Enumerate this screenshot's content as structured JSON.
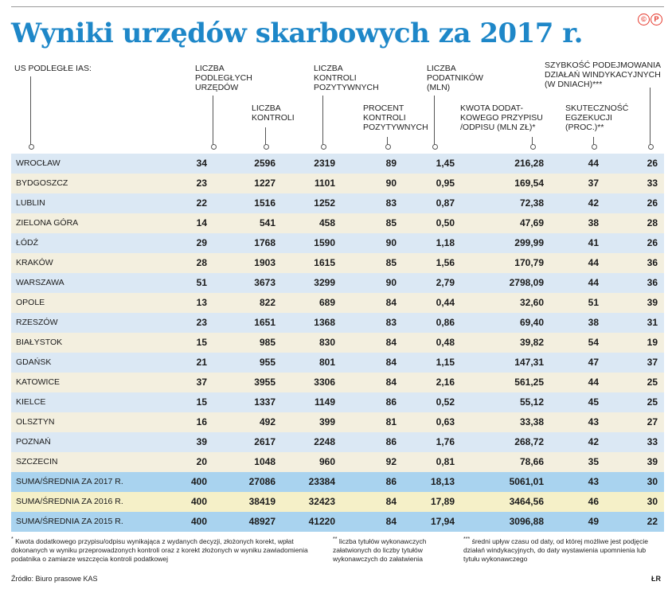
{
  "title": "Wyniki urzędów skarbowych za 2017 r.",
  "logo": "©P",
  "headers": {
    "us": "US PODLEGŁE IAS:",
    "liczba_urzedow": "LICZBA\nPODLEGŁYCH\nURZĘDÓW",
    "liczba_kontroli": "LICZBA\nKONTROLI",
    "kontrole_pozytywne": "LICZBA\nKONTROLI\nPOZYTYWNYCH",
    "procent_pozytywnych": "PROCENT\nKONTROLI\nPOZYTYWNYCH",
    "podatnicy": "LICZBA\nPODATNIKÓW\n(MLN)",
    "kwota": "KWOTA DODAT-\nKOWEGO PRZYPISU\n/ODPISU (MLN ZŁ)*",
    "skutecznosc": "SKUTECZNOŚĆ\nEGZEKUCJI\n(PROC.)**",
    "szybkosc": "SZYBKOŚĆ PODEJMOWANIA\nDZIAŁAŃ WINDYKACYJNYCH\n(W DNIACH)***"
  },
  "rows": [
    {
      "name": "WROCŁAW",
      "vals": [
        "34",
        "2596",
        "2319",
        "89",
        "1,45",
        "216,28",
        "44",
        "26"
      ]
    },
    {
      "name": "BYDGOSZCZ",
      "vals": [
        "23",
        "1227",
        "1101",
        "90",
        "0,95",
        "169,54",
        "37",
        "33"
      ]
    },
    {
      "name": "LUBLIN",
      "vals": [
        "22",
        "1516",
        "1252",
        "83",
        "0,87",
        "72,38",
        "42",
        "26"
      ]
    },
    {
      "name": "ZIELONA GÓRA",
      "vals": [
        "14",
        "541",
        "458",
        "85",
        "0,50",
        "47,69",
        "38",
        "28"
      ]
    },
    {
      "name": "ŁÓDŹ",
      "vals": [
        "29",
        "1768",
        "1590",
        "90",
        "1,18",
        "299,99",
        "41",
        "26"
      ]
    },
    {
      "name": "KRAKÓW",
      "vals": [
        "28",
        "1903",
        "1615",
        "85",
        "1,56",
        "170,79",
        "44",
        "36"
      ]
    },
    {
      "name": "WARSZAWA",
      "vals": [
        "51",
        "3673",
        "3299",
        "90",
        "2,79",
        "2798,09",
        "44",
        "36"
      ]
    },
    {
      "name": "OPOLE",
      "vals": [
        "13",
        "822",
        "689",
        "84",
        "0,44",
        "32,60",
        "51",
        "39"
      ]
    },
    {
      "name": "RZESZÓW",
      "vals": [
        "23",
        "1651",
        "1368",
        "83",
        "0,86",
        "69,40",
        "38",
        "31"
      ]
    },
    {
      "name": "BIAŁYSTOK",
      "vals": [
        "15",
        "985",
        "830",
        "84",
        "0,48",
        "39,82",
        "54",
        "19"
      ]
    },
    {
      "name": "GDAŃSK",
      "vals": [
        "21",
        "955",
        "801",
        "84",
        "1,15",
        "147,31",
        "47",
        "37"
      ]
    },
    {
      "name": "KATOWICE",
      "vals": [
        "37",
        "3955",
        "3306",
        "84",
        "2,16",
        "561,25",
        "44",
        "25"
      ]
    },
    {
      "name": "KIELCE",
      "vals": [
        "15",
        "1337",
        "1149",
        "86",
        "0,52",
        "55,12",
        "45",
        "25"
      ]
    },
    {
      "name": "OLSZTYN",
      "vals": [
        "16",
        "492",
        "399",
        "81",
        "0,63",
        "33,38",
        "43",
        "27"
      ]
    },
    {
      "name": "POZNAŃ",
      "vals": [
        "39",
        "2617",
        "2248",
        "86",
        "1,76",
        "268,72",
        "42",
        "33"
      ]
    },
    {
      "name": "SZCZECIN",
      "vals": [
        "20",
        "1048",
        "960",
        "92",
        "0,81",
        "78,66",
        "35",
        "39"
      ]
    },
    {
      "name": "SUMA/ŚREDNIA ZA 2017 R.",
      "vals": [
        "400",
        "27086",
        "23384",
        "86",
        "18,13",
        "5061,01",
        "43",
        "30"
      ]
    },
    {
      "name": "SUMA/ŚREDNIA ZA 2016 R.",
      "vals": [
        "400",
        "38419",
        "32423",
        "84",
        "17,89",
        "3464,56",
        "46",
        "30"
      ]
    },
    {
      "name": "SUMA/ŚREDNIA ZA 2015 R.",
      "vals": [
        "400",
        "48927",
        "41220",
        "84",
        "17,94",
        "3096,88",
        "49",
        "22"
      ]
    }
  ],
  "notes": {
    "n1_mark": "*",
    "n1": "Kwota dodatkowego przypisu/odpisu wynikająca z wydanych decyzji, złożonych korekt, wpłat dokonanych w wyniku przeprowadzonych kontroli oraz z korekt złożonych w wyniku zawiadomienia podatnika o zamiarze wszczęcia kontroli podatkowej",
    "n2_mark": "**",
    "n2": "liczba tytułów wykonawczych załatwionych do liczby tytułów wykonawczych do załatwienia",
    "n3_mark": "***",
    "n3": "średni upływ czasu od daty, od której możliwe jest podjęcie działań windykacyjnych, do daty wystawienia upomnienia lub tytułu wykonawczego"
  },
  "source": "Źródło: Biuro prasowe KAS",
  "author": "ŁR"
}
